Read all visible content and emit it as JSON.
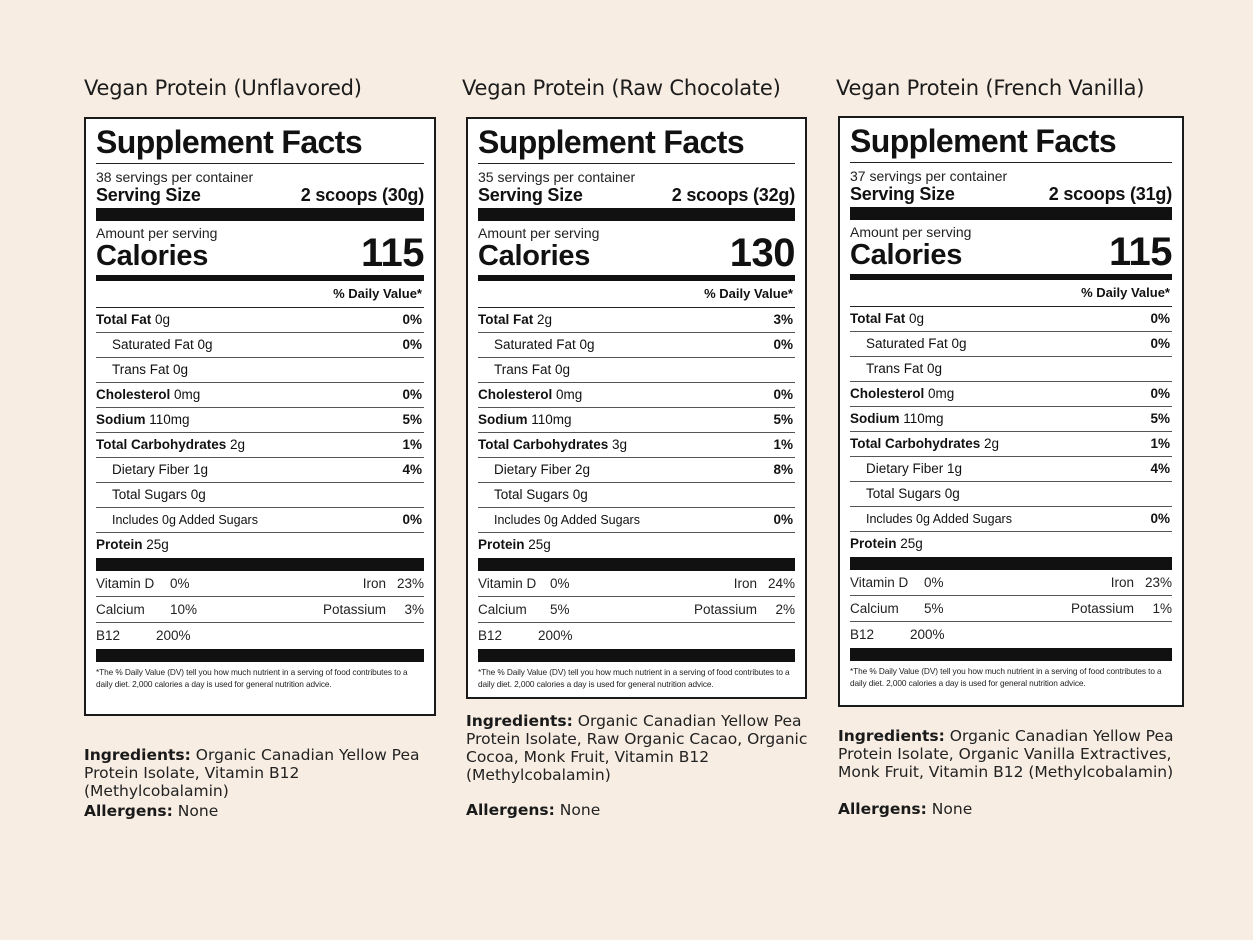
{
  "products": [
    {
      "title": "Vegan Protein (Unflavored)",
      "label": {
        "heading": "Supplement Facts",
        "servings_per_container": "38 servings per container",
        "serving_size_label": "Serving Size",
        "serving_size_value": "2 scoops (30g)",
        "amount_per_serving": "Amount per serving",
        "calories_label": "Calories",
        "calories_value": "115",
        "daily_value_header": "% Daily Value*",
        "total_fat": {
          "name": "Total Fat",
          "amount": "0g",
          "dv": "0%"
        },
        "saturated_fat": {
          "name": "Saturated Fat 0g",
          "dv": "0%"
        },
        "trans_fat": {
          "name": "Trans Fat 0g"
        },
        "cholesterol": {
          "name": "Cholesterol",
          "amount": "0mg",
          "dv": "0%"
        },
        "sodium": {
          "name": "Sodium",
          "amount": "110mg",
          "dv": "5%"
        },
        "total_carbs": {
          "name": "Total Carbohydrates",
          "amount": "2g",
          "dv": "1%"
        },
        "dietary_fiber": {
          "name": "Dietary Fiber 1g",
          "dv": "4%"
        },
        "total_sugars": {
          "name": "Total Sugars 0g"
        },
        "added_sugars": {
          "name": "Includes 0g Added Sugars",
          "dv": "0%"
        },
        "protein": {
          "name": "Protein",
          "amount": "25g"
        },
        "vitamin_d": {
          "name": "Vitamin D",
          "dv": "0%"
        },
        "iron": {
          "name": "Iron",
          "dv": "23%"
        },
        "calcium": {
          "name": "Calcium",
          "dv": "10%"
        },
        "potassium": {
          "name": "Potassium",
          "dv": "3%"
        },
        "b12": {
          "name": "B12",
          "dv": "200%"
        },
        "footnote": "*The % Daily Value (DV) tell you how much nutrient in a serving of food contributes to a daily diet. 2,000 calories a day is used for general nutrition advice."
      },
      "ingredients_label": "Ingredients:",
      "ingredients_text": "Organic Canadian Yellow Pea Protein Isolate, Vitamin B12 (Methylcobalamin)",
      "allergens_label": "Allergens:",
      "allergens_text": "None"
    },
    {
      "title": "Vegan Protein (Raw Chocolate)",
      "label": {
        "heading": "Supplement Facts",
        "servings_per_container": "35 servings per container",
        "serving_size_label": "Serving Size",
        "serving_size_value": "2 scoops (32g)",
        "amount_per_serving": "Amount per serving",
        "calories_label": "Calories",
        "calories_value": "130",
        "daily_value_header": "% Daily Value*",
        "total_fat": {
          "name": "Total Fat",
          "amount": "2g",
          "dv": "3%"
        },
        "saturated_fat": {
          "name": "Saturated Fat 0g",
          "dv": "0%"
        },
        "trans_fat": {
          "name": "Trans Fat 0g"
        },
        "cholesterol": {
          "name": "Cholesterol",
          "amount": "0mg",
          "dv": "0%"
        },
        "sodium": {
          "name": "Sodium",
          "amount": "110mg",
          "dv": "5%"
        },
        "total_carbs": {
          "name": "Total Carbohydrates",
          "amount": "3g",
          "dv": "1%"
        },
        "dietary_fiber": {
          "name": "Dietary Fiber 2g",
          "dv": "8%"
        },
        "total_sugars": {
          "name": "Total Sugars 0g"
        },
        "added_sugars": {
          "name": "Includes 0g Added Sugars",
          "dv": "0%"
        },
        "protein": {
          "name": "Protein",
          "amount": "25g"
        },
        "vitamin_d": {
          "name": "Vitamin D",
          "dv": "0%"
        },
        "iron": {
          "name": "Iron",
          "dv": "24%"
        },
        "calcium": {
          "name": "Calcium",
          "dv": "5%"
        },
        "potassium": {
          "name": "Potassium",
          "dv": "2%"
        },
        "b12": {
          "name": "B12",
          "dv": "200%"
        },
        "footnote": "*The % Daily Value (DV) tell you how much nutrient in a serving of food contributes to a daily diet. 2,000 calories a day is used for general nutrition advice."
      },
      "ingredients_label": "Ingredients:",
      "ingredients_text": "Organic Canadian Yellow Pea Protein Isolate, Raw Organic Cacao, Organic Cocoa, Monk Fruit, Vitamin B12 (Methylcobalamin)",
      "allergens_label": "Allergens:",
      "allergens_text": "None"
    },
    {
      "title": "Vegan Protein (French Vanilla)",
      "label": {
        "heading": "Supplement Facts",
        "servings_per_container": "37 servings per container",
        "serving_size_label": "Serving Size",
        "serving_size_value": "2 scoops (31g)",
        "amount_per_serving": "Amount per serving",
        "calories_label": "Calories",
        "calories_value": "115",
        "daily_value_header": "% Daily Value*",
        "total_fat": {
          "name": "Total Fat",
          "amount": "0g",
          "dv": "0%"
        },
        "saturated_fat": {
          "name": "Saturated Fat 0g",
          "dv": "0%"
        },
        "trans_fat": {
          "name": "Trans Fat 0g"
        },
        "cholesterol": {
          "name": "Cholesterol",
          "amount": "0mg",
          "dv": "0%"
        },
        "sodium": {
          "name": "Sodium",
          "amount": "110mg",
          "dv": "5%"
        },
        "total_carbs": {
          "name": "Total Carbohydrates",
          "amount": "2g",
          "dv": "1%"
        },
        "dietary_fiber": {
          "name": "Dietary Fiber 1g",
          "dv": "4%"
        },
        "total_sugars": {
          "name": "Total Sugars 0g"
        },
        "added_sugars": {
          "name": "Includes 0g Added Sugars",
          "dv": "0%"
        },
        "protein": {
          "name": "Protein",
          "amount": "25g"
        },
        "vitamin_d": {
          "name": "Vitamin D",
          "dv": "0%"
        },
        "iron": {
          "name": "Iron",
          "dv": "23%"
        },
        "calcium": {
          "name": "Calcium",
          "dv": "5%"
        },
        "potassium": {
          "name": "Potassium",
          "dv": "1%"
        },
        "b12": {
          "name": "B12",
          "dv": "200%"
        },
        "footnote": "*The % Daily Value (DV) tell you how much nutrient in a serving of food contributes to a daily diet. 2,000 calories a day is used for general nutrition advice."
      },
      "ingredients_label": "Ingredients:",
      "ingredients_text": "Organic Canadian Yellow Pea Protein Isolate, Organic Vanilla Extractives, Monk Fruit, Vitamin B12 (Methylcobalamin)",
      "allergens_label": "Allergens:",
      "allergens_text": "None"
    }
  ]
}
